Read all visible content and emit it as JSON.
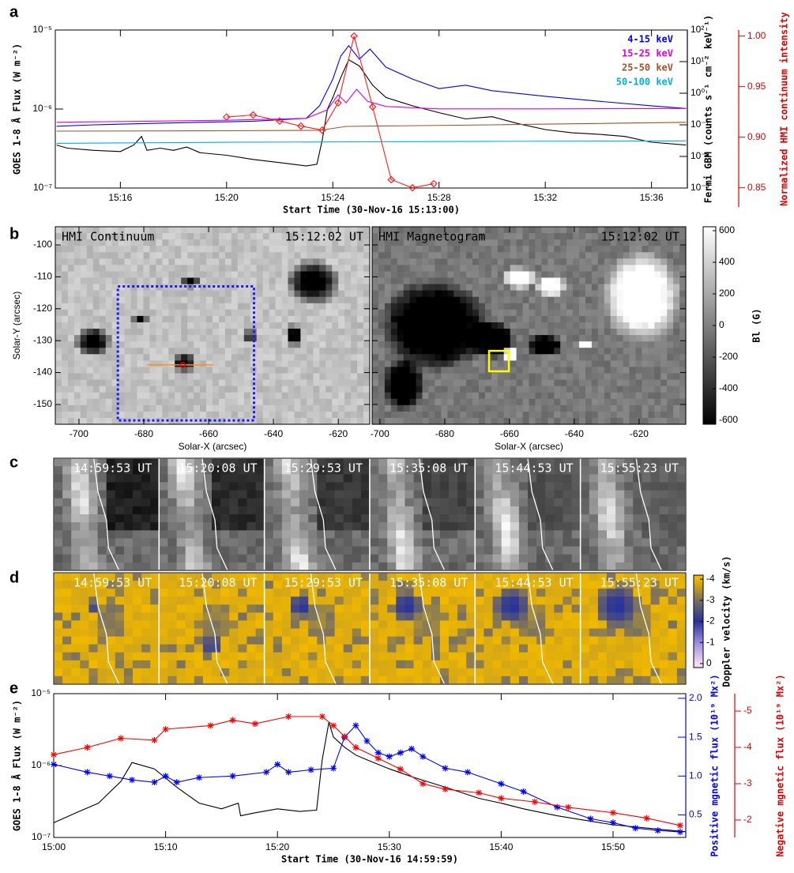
{
  "chart_data": [
    {
      "type": "line",
      "panel_label": "a",
      "x_label": "Start Time (30-Nov-16 15:13:00)",
      "xlim": [
        13.55,
        37.35
      ],
      "xticks": [
        {
          "value": 16,
          "label": "15:16"
        },
        {
          "value": 20,
          "label": "15:20"
        },
        {
          "value": 24,
          "label": "15:24"
        },
        {
          "value": 28,
          "label": "15:28"
        },
        {
          "value": 32,
          "label": "15:32"
        },
        {
          "value": 36,
          "label": "15:36"
        }
      ],
      "y_label": "GOES 1-8 Å Flux (W m⁻²)",
      "yscale": "log",
      "ylim": [
        1e-07,
        1e-05
      ],
      "yticks": [
        {
          "value": 1e-07,
          "label": "10⁻⁷"
        },
        {
          "value": 1e-06,
          "label": "10⁻⁶"
        },
        {
          "value": 1e-05,
          "label": "10⁻⁵"
        }
      ],
      "y2_label": "Fermi GBM (counts s⁻¹ cm⁻² keV⁻¹)",
      "y2scale": "log",
      "y2lim": [
        0.001,
        100
      ],
      "y2_color": "#000000",
      "y2ticks": [
        {
          "value": 0.001,
          "label": "10⁻³"
        },
        {
          "value": 0.01,
          "label": "10⁻²"
        },
        {
          "value": 0.1,
          "label": "10⁻¹"
        },
        {
          "value": 1,
          "label": "10⁰"
        },
        {
          "value": 10,
          "label": "10¹"
        },
        {
          "value": 100,
          "label": "10²"
        }
      ],
      "y3_label": "Normalized HMI continuum intensity",
      "y3lim": [
        0.831,
        1.006
      ],
      "y3_color": "#e00000",
      "y3ticks": [
        0.85,
        {
          "value": 0.9,
          "label": "0.90"
        },
        0.95,
        {
          "value": 1,
          "label": "1.00"
        }
      ],
      "series": [
        {
          "color": "#000000",
          "x": [
            13.6,
            14,
            15,
            16,
            16.5,
            16.8,
            17,
            17.5,
            18,
            18.5,
            19,
            20,
            21,
            22,
            22.5,
            23,
            23.4,
            23.6,
            23.8,
            24,
            24.3,
            24.6,
            25,
            25.5,
            26,
            27,
            28,
            29,
            30,
            31,
            32,
            33,
            34,
            35,
            36,
            37.3
          ],
          "values": [
            3.5e-07,
            3.2e-07,
            3e-07,
            2.9e-07,
            3.5e-07,
            4.5e-07,
            3e-07,
            3.2e-07,
            3e-07,
            3.3e-07,
            2.8e-07,
            2.6e-07,
            2.3e-07,
            2.1e-07,
            2e-07,
            1.9e-07,
            2e-07,
            4e-07,
            1e-06,
            1.4e-06,
            2.5e-06,
            4.2e-06,
            3.5e-06,
            2e-06,
            1.4e-06,
            1.1e-06,
            9e-07,
            7.5e-07,
            8e-07,
            6.5e-07,
            5.5e-07,
            5e-07,
            4.8e-07,
            4.5e-07,
            3.8e-07,
            3.5e-07
          ]
        },
        {
          "name": "4-15 keV",
          "color": "#0000ff",
          "axis": "y2",
          "x": [
            13.6,
            15,
            17,
            19,
            21,
            23,
            23.5,
            24,
            24.3,
            24.6,
            25,
            25.4,
            26,
            27,
            28,
            29,
            30,
            32,
            34,
            36,
            37.3
          ],
          "values": [
            0.09,
            0.1,
            0.11,
            0.12,
            0.13,
            0.16,
            0.4,
            2.8,
            15,
            32,
            12,
            25,
            6.7,
            2.8,
            1.4,
            1.8,
            1.2,
            0.8,
            0.56,
            0.4,
            0.33
          ]
        },
        {
          "name": "15-25 keV",
          "color": "#e000e0",
          "axis": "y2",
          "x": [
            13.6,
            17,
            20,
            23,
            23.8,
            24.2,
            24.5,
            24.9,
            25.3,
            26,
            28,
            32,
            37.3
          ],
          "values": [
            0.12,
            0.13,
            0.14,
            0.16,
            0.3,
            0.89,
            0.5,
            1.33,
            0.56,
            0.38,
            0.32,
            0.32,
            0.33
          ]
        },
        {
          "name": "25-50 keV",
          "color": "#a0522d",
          "axis": "y2",
          "x": [
            13.6,
            20,
            23.5,
            24.5,
            30,
            37.3
          ],
          "values": [
            0.063,
            0.065,
            0.067,
            0.089,
            0.1,
            0.12
          ]
        },
        {
          "name": "50-100 keV",
          "color": "#00b0e0",
          "axis": "y2",
          "x": [
            13.6,
            20,
            25,
            30,
            37.3
          ],
          "values": [
            0.026,
            0.028,
            0.029,
            0.03,
            0.031
          ]
        },
        {
          "color": "#ff2020",
          "axis": "y3",
          "marker": "diamond",
          "x": [
            20,
            21,
            22,
            22.8,
            23.6,
            24.2,
            24.8,
            25.5,
            26.2,
            27,
            27.8
          ],
          "values": [
            0.92,
            0.922,
            0.916,
            0.911,
            0.907,
            0.934,
            1.0,
            0.93,
            0.858,
            0.85,
            0.854
          ]
        }
      ]
    },
    {
      "type": "image",
      "panel_label": "b",
      "y_label": "Solar-Y (arcsec)",
      "ylim": [
        -156.2,
        -94.3
      ],
      "yticks": [
        -100,
        -110,
        -120,
        -130,
        -140,
        -150
      ],
      "images": [
        {
          "title": "HMI Continuum",
          "time": "15:12:02 UT",
          "x_label": "Solar-X (arcsec)",
          "xlim": [
            -707.3,
            -610.3
          ],
          "xticks": [
            -700,
            -680,
            -660,
            -640,
            -620
          ],
          "overlays": [
            {
              "shape": "box",
              "x": [
                -688,
                -646
              ],
              "y": [
                -155,
                -113
              ],
              "color": "#1a1aff",
              "dash": true
            },
            {
              "shape": "line",
              "x": [
                -679,
                -658.5
              ],
              "y": [
                -137.6,
                -137.6
              ],
              "color": "#ff8c1a"
            },
            {
              "shape": "circle",
              "x": [
                -668
              ],
              "y": [
                -137.6
              ],
              "color": "#e00000"
            }
          ]
        },
        {
          "title": "HMI Magnetogram",
          "time": "15:12:02 UT",
          "x_label": "Solar-X (arcsec)",
          "xlim": [
            -702.4,
            -605.6
          ],
          "xticks": [
            -700,
            -680,
            -660,
            -640,
            -620
          ],
          "overlays": [
            {
              "shape": "box",
              "x": [
                -666.3,
                -660.2
              ],
              "y": [
                -139.6,
                -133.2
              ],
              "color": "#ffff00"
            }
          ]
        }
      ],
      "colorbar": {
        "label": "Bl (G)",
        "lim": [
          625,
          -625
        ],
        "ticks": [
          600,
          400,
          200,
          0,
          -200,
          -400,
          -600
        ]
      }
    },
    {
      "type": "strip",
      "panel_label": "c",
      "colormap": "gray",
      "times": [
        "14:59:53 UT",
        "15:20:08 UT",
        "15:29:53 UT",
        "15:35:08 UT",
        "15:44:53 UT",
        "15:55:23 UT"
      ]
    },
    {
      "type": "strip",
      "panel_label": "d",
      "colormap": "doppler",
      "times": [
        "14:59:53 UT",
        "15:20:08 UT",
        "15:29:53 UT",
        "15:35:08 UT",
        "15:44:53 UT",
        "15:55:23 UT"
      ],
      "colorbar": {
        "label": "Doppler velocity (km/s)",
        "lim": [
          -4.19,
          0.19
        ],
        "ticks": [
          -4,
          -3,
          -2,
          -1,
          0
        ]
      }
    },
    {
      "type": "line",
      "panel_label": "e",
      "x_label": "Start Time (30-Nov-16 14:59:59)",
      "xlim": [
        0,
        56.5
      ],
      "xticks": [
        {
          "value": 0,
          "label": "15:00"
        },
        {
          "value": 10,
          "label": "15:10"
        },
        {
          "value": 20,
          "label": "15:20"
        },
        {
          "value": 30,
          "label": "15:30"
        },
        {
          "value": 40,
          "label": "15:40"
        },
        {
          "value": 50,
          "label": "15:50"
        }
      ],
      "y_label": "GOES 1-8 Å Flux (W m⁻²)",
      "yscale": "log",
      "ylim": [
        1e-07,
        1e-05
      ],
      "yticks": [
        {
          "value": 1e-07,
          "label": "10⁻⁷"
        },
        {
          "value": 1e-06,
          "label": "10⁻⁶"
        },
        {
          "value": 1e-05,
          "label": "10⁻⁵"
        }
      ],
      "y2_label": "Positive mgnetic flux (10¹⁹ Mx²)",
      "y2lim": [
        0.21,
        2.06
      ],
      "y2_color": "#0000ff",
      "y2ticks": [
        0.5,
        {
          "value": 1,
          "label": "1.0"
        },
        1.5,
        {
          "value": 2,
          "label": "2.0"
        }
      ],
      "y3_label": "Negative mgnetic flux (10¹⁹ Mx²)",
      "y3lim": [
        -1.52,
        -5.48
      ],
      "y3_color": "#e00000",
      "y3ticks": [
        -5,
        -4,
        -3,
        -2
      ],
      "series": [
        {
          "color": "#000000",
          "x": [
            0,
            2,
            4,
            6,
            7,
            9,
            11,
            13,
            15,
            16.5,
            16.7,
            18,
            20,
            22,
            23.5,
            24,
            24.6,
            25,
            26,
            27,
            28,
            30,
            32,
            35,
            38,
            40,
            42,
            45,
            50,
            56.5
          ],
          "values": [
            1.6e-07,
            2.2e-07,
            3e-07,
            6e-07,
            1.1e-06,
            9e-07,
            5e-07,
            3e-07,
            2.5e-07,
            3e-07,
            2e-07,
            2.2e-07,
            2.5e-07,
            2.3e-07,
            2.4e-07,
            1.2e-06,
            4e-06,
            2.5e-06,
            1.8e-06,
            1.4e-06,
            1.2e-06,
            9e-07,
            7e-07,
            5e-07,
            3.5e-07,
            3e-07,
            2.5e-07,
            2e-07,
            1.5e-07,
            1.2e-07
          ]
        },
        {
          "color": "#0000ff",
          "axis": "y2",
          "marker": "star",
          "x": [
            0,
            3,
            5,
            7,
            9,
            10,
            11,
            13,
            16,
            19,
            20,
            21,
            23,
            25,
            26,
            27,
            28,
            29,
            30,
            31,
            32,
            33,
            35,
            37,
            40,
            42,
            45,
            48,
            50,
            52,
            54,
            56
          ],
          "values": [
            1.15,
            1.05,
            1.0,
            0.95,
            0.92,
            1.0,
            0.92,
            0.98,
            1.0,
            1.05,
            1.15,
            1.05,
            1.08,
            1.1,
            1.5,
            1.65,
            1.45,
            1.3,
            1.25,
            1.3,
            1.35,
            1.25,
            1.1,
            1.05,
            0.9,
            0.8,
            0.6,
            0.45,
            0.4,
            0.33,
            0.3,
            0.28
          ]
        },
        {
          "color": "#ff0000",
          "axis": "y3",
          "marker": "star",
          "x": [
            0,
            3,
            6,
            9,
            10,
            14,
            16,
            18,
            21,
            24,
            25,
            26,
            27,
            29,
            31,
            33,
            35,
            38,
            40,
            43,
            46,
            50,
            53,
            56
          ],
          "values": [
            -3.8,
            -4.0,
            -4.25,
            -4.2,
            -4.5,
            -4.6,
            -4.75,
            -4.65,
            -4.85,
            -4.85,
            -4.6,
            -4.3,
            -4.0,
            -3.7,
            -3.4,
            -3.0,
            -2.85,
            -2.75,
            -2.6,
            -2.5,
            -2.35,
            -2.2,
            -2.05,
            -1.85
          ]
        }
      ]
    }
  ]
}
